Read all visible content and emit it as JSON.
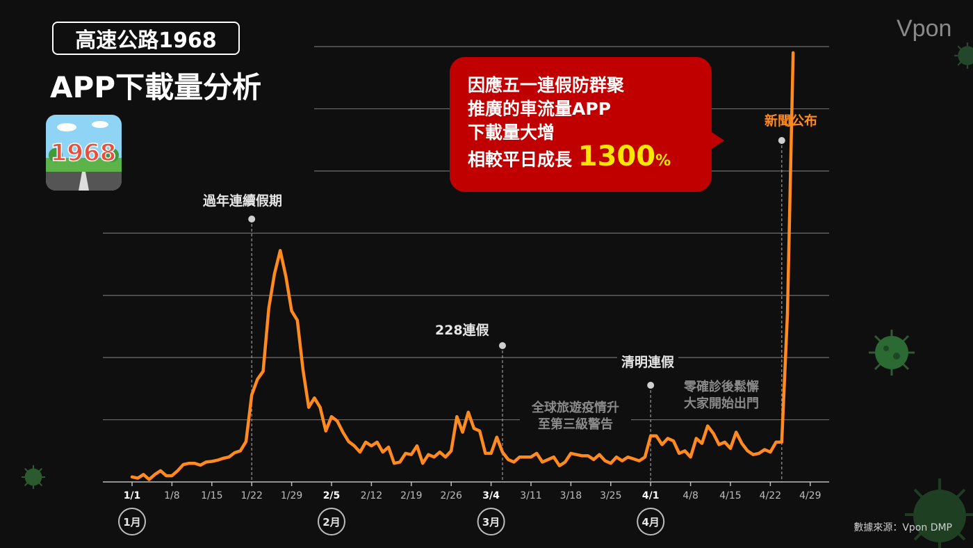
{
  "header": {
    "subtitle": "高速公路1968",
    "title": "APP下載量分析",
    "brand": "Vpon",
    "source": "數據來源：Vpon DMP",
    "app_icon_text": "1968"
  },
  "callout": {
    "line1": "因應五一連假防群聚",
    "line2": "推廣的車流量APP",
    "line3": "下載量大增",
    "line4_prefix": "相較平日成長",
    "highlight": "1300",
    "unit": "%"
  },
  "annotations": {
    "lunar_new_year": "過年連續假期",
    "day_228": "228連假",
    "qingming": "清明連假",
    "news": "新聞公布",
    "global_travel_line1": "全球旅遊疫情升",
    "global_travel_line2": "至第三級警告",
    "zero_case_line1": "零確診後鬆懈",
    "zero_case_line2": "大家開始出門"
  },
  "colors": {
    "line": "#ff8a1f",
    "callout": "#c00000",
    "highlight": "#ffe600",
    "grid": "#6e6e6e"
  },
  "chart_data": {
    "type": "line",
    "title": "APP下載量分析",
    "ylim": [
      0,
      7
    ],
    "grid": true,
    "x_tick_labels": [
      "1/1",
      "1/8",
      "1/15",
      "1/22",
      "1/29",
      "2/5",
      "2/12",
      "2/19",
      "2/26",
      "3/4",
      "3/11",
      "3/18",
      "3/25",
      "4/1",
      "4/8",
      "4/15",
      "4/22",
      "4/29"
    ],
    "bold_ticks": [
      "1/1",
      "2/5",
      "3/4",
      "4/1"
    ],
    "month_markers": [
      "1月",
      "2月",
      "3月",
      "4月"
    ],
    "event_days": [
      21,
      65,
      91,
      114
    ],
    "series": [
      {
        "values": [
          0.08,
          0.06,
          0.12,
          0.04,
          0.12,
          0.18,
          0.1,
          0.1,
          0.18,
          0.28,
          0.3,
          0.3,
          0.27,
          0.32,
          0.33,
          0.35,
          0.38,
          0.4,
          0.47,
          0.5,
          0.65,
          1.4,
          1.65,
          1.78,
          2.8,
          3.35,
          3.72,
          3.3,
          2.75,
          2.6,
          1.8,
          1.2,
          1.35,
          1.2,
          0.82,
          1.05,
          0.98,
          0.8,
          0.65,
          0.58,
          0.48,
          0.64,
          0.58,
          0.64,
          0.48,
          0.56,
          0.3,
          0.32,
          0.46,
          0.44,
          0.58,
          0.3,
          0.44,
          0.4,
          0.48,
          0.4,
          0.5,
          1.05,
          0.8,
          1.12,
          0.86,
          0.82,
          0.46,
          0.46,
          0.72,
          0.48,
          0.36,
          0.32,
          0.4,
          0.4,
          0.4,
          0.46,
          0.32,
          0.36,
          0.4,
          0.26,
          0.32,
          0.46,
          0.44,
          0.42,
          0.42,
          0.36,
          0.44,
          0.34,
          0.3,
          0.4,
          0.34,
          0.4,
          0.37,
          0.34,
          0.4,
          0.74,
          0.74,
          0.6,
          0.7,
          0.66,
          0.46,
          0.5,
          0.4,
          0.7,
          0.62,
          0.9,
          0.78,
          0.6,
          0.64,
          0.54,
          0.8,
          0.62,
          0.5,
          0.44,
          0.46,
          0.52,
          0.48,
          0.64,
          0.64,
          2.7,
          6.9
        ]
      }
    ]
  }
}
